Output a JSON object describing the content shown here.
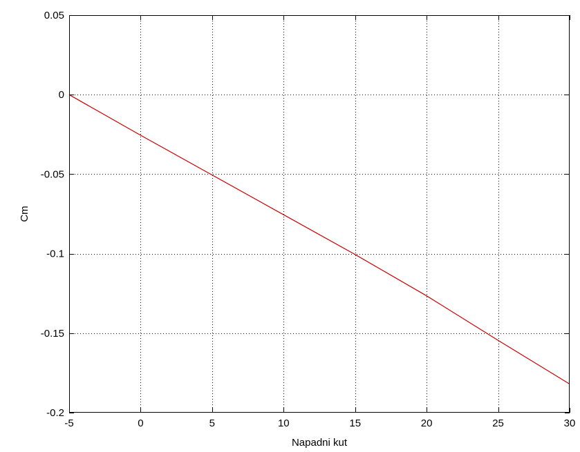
{
  "chart_data": {
    "type": "line",
    "title": "",
    "xlabel": "Napadni kut",
    "ylabel": "Cm",
    "xlim": [
      -5,
      30
    ],
    "ylim": [
      -0.2,
      0.05
    ],
    "grid": true,
    "x_ticks": [
      -5,
      0,
      5,
      10,
      15,
      20,
      25,
      30
    ],
    "x_tick_labels": [
      "-5",
      "0",
      "5",
      "10",
      "15",
      "20",
      "25",
      "30"
    ],
    "y_ticks": [
      0.05,
      0,
      -0.05,
      -0.1,
      -0.15,
      -0.2
    ],
    "y_tick_labels": [
      "0.05",
      "0",
      "-0.05",
      "-0.1",
      "-0.15",
      "-0.2"
    ],
    "series": [
      {
        "color": "#cc0000",
        "x": [
          -5,
          0,
          5,
          10,
          15,
          20,
          25,
          30
        ],
        "y": [
          0,
          -0.0255,
          -0.0505,
          -0.0755,
          -0.1005,
          -0.1265,
          -0.1545,
          -0.182
        ]
      }
    ]
  }
}
